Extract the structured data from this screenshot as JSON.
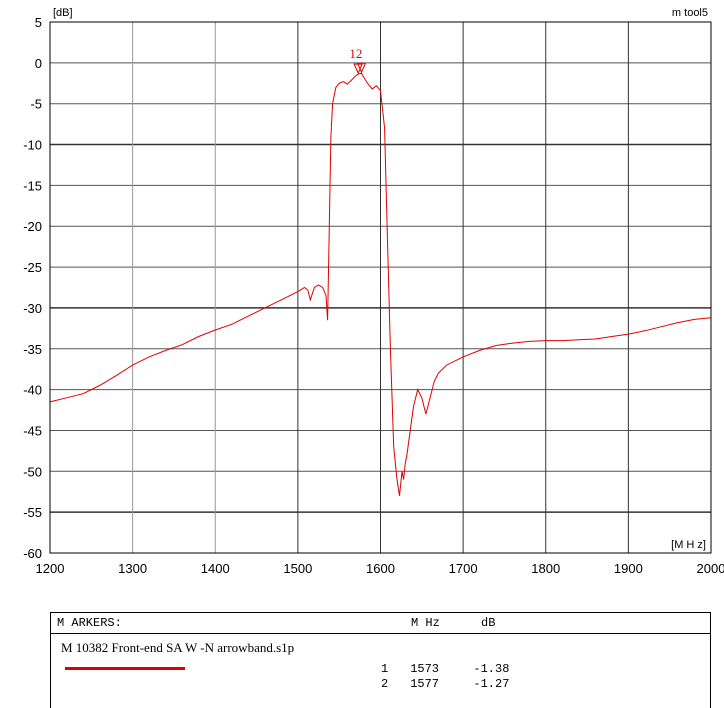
{
  "chart_data": {
    "type": "line",
    "ylabel": "[dB]",
    "xlabel": "[M H z]",
    "corner_label": "m tool5",
    "xlim": [
      1200,
      2000
    ],
    "ylim": [
      -60,
      5
    ],
    "xticks": [
      1200,
      1300,
      1400,
      1500,
      1600,
      1700,
      1800,
      1900,
      2000
    ],
    "yticks": [
      5,
      0,
      -5,
      -10,
      -15,
      -20,
      -25,
      -30,
      -35,
      -40,
      -45,
      -50,
      -55,
      -60
    ],
    "grid": true,
    "series": [
      {
        "color": "#e00000",
        "x": [
          1200,
          1220,
          1240,
          1260,
          1280,
          1300,
          1320,
          1340,
          1360,
          1380,
          1400,
          1420,
          1440,
          1460,
          1480,
          1500,
          1508,
          1512,
          1515,
          1520,
          1525,
          1530,
          1534,
          1536,
          1538,
          1540,
          1542,
          1544,
          1546,
          1550,
          1555,
          1560,
          1565,
          1570,
          1573,
          1577,
          1580,
          1585,
          1590,
          1595,
          1600,
          1605,
          1608,
          1612,
          1616,
          1620,
          1623,
          1626,
          1628,
          1630,
          1632,
          1636,
          1640,
          1645,
          1650,
          1655,
          1660,
          1665,
          1670,
          1680,
          1700,
          1720,
          1740,
          1760,
          1780,
          1800,
          1820,
          1840,
          1860,
          1880,
          1900,
          1920,
          1940,
          1960,
          1980,
          2000
        ],
        "y": [
          -41.5,
          -41,
          -40.5,
          -39.5,
          -38.3,
          -37,
          -36,
          -35.2,
          -34.5,
          -33.5,
          -32.7,
          -32,
          -31,
          -30,
          -29,
          -28,
          -27.5,
          -27.8,
          -29,
          -27.5,
          -27.2,
          -27.5,
          -28.5,
          -31.5,
          -20,
          -9,
          -5,
          -4,
          -3,
          -2.5,
          -2.3,
          -2.6,
          -2.1,
          -1.6,
          -1.38,
          -1.27,
          -1.8,
          -2.6,
          -3.2,
          -2.8,
          -3.4,
          -8,
          -20,
          -35,
          -47,
          -51,
          -53,
          -50,
          -51,
          -49,
          -48,
          -45,
          -42,
          -40,
          -41,
          -43,
          -41,
          -39,
          -38,
          -37,
          -36,
          -35.2,
          -34.6,
          -34.3,
          -34.1,
          -34,
          -34,
          -33.9,
          -33.8,
          -33.5,
          -33.2,
          -32.8,
          -32.3,
          -31.8,
          -31.4,
          -31.2
        ]
      }
    ],
    "marker_points": [
      {
        "label": "1",
        "x": 1573,
        "y": -1.38
      },
      {
        "label": "2",
        "x": 1577,
        "y": -1.27
      }
    ],
    "marker_cluster_label": "12"
  },
  "markers_panel": {
    "title": "M ARKERS:",
    "col_freq": "M Hz",
    "col_db": "dB",
    "file": "M 10382 Front-end SA W  -N arrowband.s1p",
    "rows": [
      {
        "n": "1",
        "freq": "1573",
        "db": "-1.38"
      },
      {
        "n": "2",
        "freq": "1577",
        "db": "-1.27"
      }
    ],
    "trace_color": "#e00000"
  }
}
